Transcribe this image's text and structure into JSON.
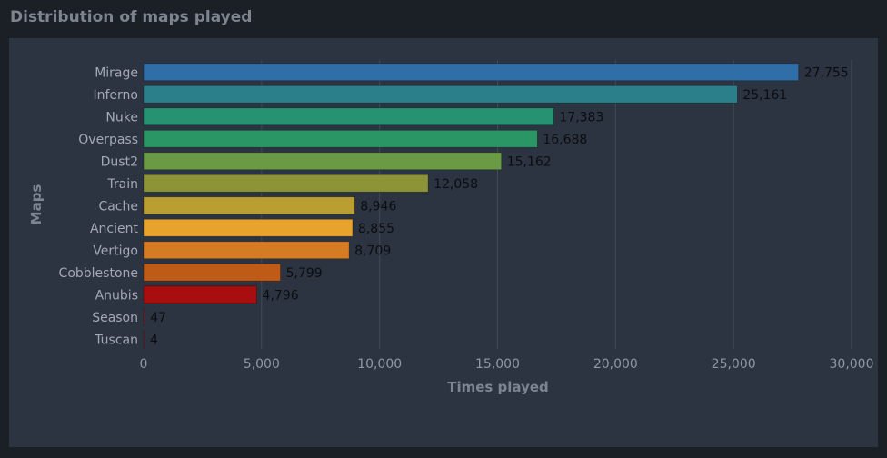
{
  "page": {
    "title": "Distribution of maps played"
  },
  "chart_data": {
    "type": "bar",
    "orientation": "horizontal",
    "title": "Distribution of maps played",
    "xlabel": "Times played",
    "ylabel": "Maps",
    "xlim": [
      0,
      30000
    ],
    "xticks": [
      0,
      5000,
      10000,
      15000,
      20000,
      25000,
      30000
    ],
    "xtick_labels": [
      "0",
      "5,000",
      "10,000",
      "15,000",
      "20,000",
      "25,000",
      "30,000"
    ],
    "grid": true,
    "categories": [
      "Mirage",
      "Inferno",
      "Nuke",
      "Overpass",
      "Dust2",
      "Train",
      "Cache",
      "Ancient",
      "Vertigo",
      "Cobblestone",
      "Anubis",
      "Season",
      "Tuscan"
    ],
    "values": [
      27755,
      25161,
      17383,
      16688,
      15162,
      12058,
      8946,
      8855,
      8709,
      5799,
      4796,
      47,
      4
    ],
    "value_labels": [
      "27,755",
      "25,161",
      "17,383",
      "16,688",
      "15,162",
      "12,058",
      "8,946",
      "8,855",
      "8,709",
      "5,799",
      "4,796",
      "47",
      "4"
    ],
    "colors": [
      "#2f6ea7",
      "#2b7f8a",
      "#279272",
      "#2a9565",
      "#6a9a43",
      "#8d9438",
      "#b99e31",
      "#e8a32c",
      "#d47b24",
      "#c05a17",
      "#a80d10",
      "#8a2030",
      "#8a2030"
    ]
  }
}
